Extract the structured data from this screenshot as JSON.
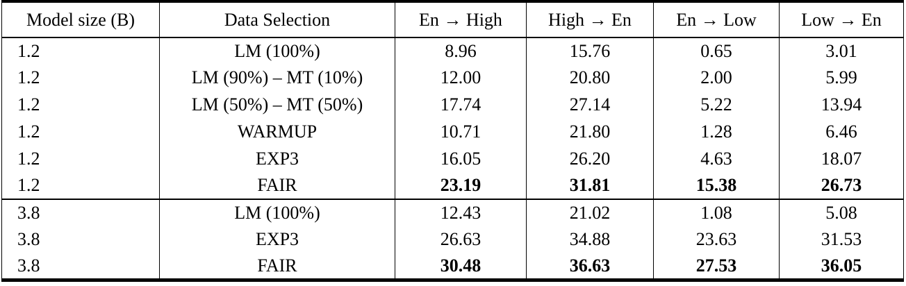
{
  "table": {
    "headers": [
      "Model size (B)",
      "Data Selection",
      "En → High",
      "High → En",
      "En → Low",
      "Low → En"
    ],
    "groups": [
      {
        "rows": [
          {
            "model_size": "1.2",
            "data_selection": "LM (100%)",
            "en_to_high": "8.96",
            "high_to_en": "15.76",
            "en_to_low": "0.65",
            "low_to_en": "3.01",
            "bold_values": false
          },
          {
            "model_size": "1.2",
            "data_selection": "LM (90%) – MT (10%)",
            "en_to_high": "12.00",
            "high_to_en": "20.80",
            "en_to_low": "2.00",
            "low_to_en": "5.99",
            "bold_values": false
          },
          {
            "model_size": "1.2",
            "data_selection": "LM (50%) – MT (50%)",
            "en_to_high": "17.74",
            "high_to_en": "27.14",
            "en_to_low": "5.22",
            "low_to_en": "13.94",
            "bold_values": false
          },
          {
            "model_size": "1.2",
            "data_selection": "WARMUP",
            "en_to_high": "10.71",
            "high_to_en": "21.80",
            "en_to_low": "1.28",
            "low_to_en": "6.46",
            "bold_values": false
          },
          {
            "model_size": "1.2",
            "data_selection": "EXP3",
            "en_to_high": "16.05",
            "high_to_en": "26.20",
            "en_to_low": "4.63",
            "low_to_en": "18.07",
            "bold_values": false
          },
          {
            "model_size": "1.2",
            "data_selection": "FAIR",
            "en_to_high": "23.19",
            "high_to_en": "31.81",
            "en_to_low": "15.38",
            "low_to_en": "26.73",
            "bold_values": true
          }
        ]
      },
      {
        "rows": [
          {
            "model_size": "3.8",
            "data_selection": "LM (100%)",
            "en_to_high": "12.43",
            "high_to_en": "21.02",
            "en_to_low": "1.08",
            "low_to_en": "5.08",
            "bold_values": false
          },
          {
            "model_size": "3.8",
            "data_selection": "EXP3",
            "en_to_high": "26.63",
            "high_to_en": "34.88",
            "en_to_low": "23.63",
            "low_to_en": "31.53",
            "bold_values": false
          },
          {
            "model_size": "3.8",
            "data_selection": "FAIR",
            "en_to_high": "30.48",
            "high_to_en": "36.63",
            "en_to_low": "27.53",
            "low_to_en": "36.05",
            "bold_values": true
          }
        ]
      }
    ]
  }
}
